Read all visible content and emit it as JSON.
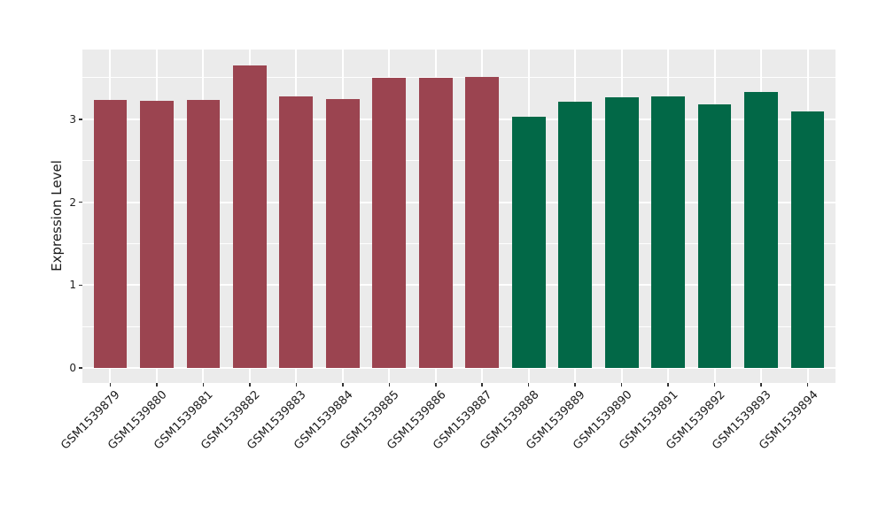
{
  "figure": {
    "ylabel": "Expression Level",
    "background_color": "#FFFFFF",
    "panel_background_color": "#EBEBEB",
    "gridline_color": "#FFFFFF",
    "tick_mark_color": "#333333",
    "text_color": "#1A1A1A"
  },
  "chart_data": {
    "type": "bar",
    "title": "",
    "xlabel": "",
    "ylabel": "Expression Level",
    "categories": [
      "GSM1539879",
      "GSM1539880",
      "GSM1539881",
      "GSM1539882",
      "GSM1539883",
      "GSM1539884",
      "GSM1539885",
      "GSM1539886",
      "GSM1539887",
      "GSM1539888",
      "GSM1539889",
      "GSM1539890",
      "GSM1539891",
      "GSM1539892",
      "GSM1539893",
      "GSM1539894"
    ],
    "values": [
      3.23,
      3.22,
      3.23,
      3.65,
      3.28,
      3.24,
      3.5,
      3.5,
      3.51,
      3.03,
      3.21,
      3.26,
      3.27,
      3.18,
      3.33,
      3.09
    ],
    "groups": [
      "group1",
      "group1",
      "group1",
      "group1",
      "group1",
      "group1",
      "group1",
      "group1",
      "group1",
      "group2",
      "group2",
      "group2",
      "group2",
      "group2",
      "group2",
      "group2"
    ],
    "group_colors": {
      "group1": "#9B4450",
      "group2": "#026847"
    },
    "ytick_labels": [
      "0",
      "1",
      "2",
      "3"
    ],
    "yticks": [
      0,
      1,
      2,
      3
    ],
    "minor_gridlines": [
      0.5,
      1.5,
      2.5,
      3.5
    ],
    "ylim": [
      -0.18,
      3.84
    ],
    "x_tick_angle_deg": 45,
    "grid": true,
    "legend": false
  }
}
